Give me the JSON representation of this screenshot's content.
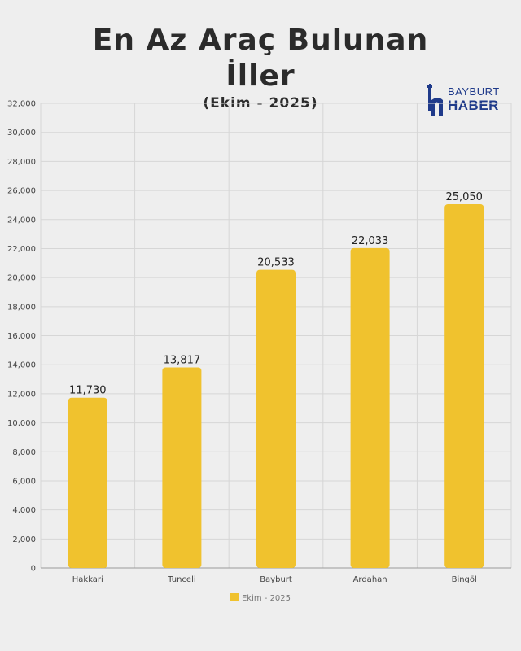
{
  "header": {
    "title_line1": "En Az Araç Bulunan",
    "title_line2": "İller",
    "subtitle": "(Ekim - 2025)"
  },
  "logo": {
    "icon": "bayburt-castle-h-icon",
    "text_top": "BAYBURT",
    "text_bottom": "HABER",
    "color": "#1f3a8a"
  },
  "chart_data": {
    "type": "bar",
    "categories": [
      "Hakkari",
      "Tunceli",
      "Bayburt",
      "Ardahan",
      "Bingöl"
    ],
    "series": [
      {
        "name": "Ekim - 2025",
        "values": [
          11730,
          13817,
          20533,
          22033,
          25050
        ],
        "color": "#f0c22e"
      }
    ],
    "data_labels": [
      "11,730",
      "13,817",
      "20,533",
      "22,033",
      "25,050"
    ],
    "ylim": [
      0,
      32000
    ],
    "yticks": [
      0,
      2000,
      4000,
      6000,
      8000,
      10000,
      12000,
      14000,
      16000,
      18000,
      20000,
      22000,
      24000,
      26000,
      28000,
      30000,
      32000
    ],
    "ytick_labels": [
      "0",
      "2,000",
      "4,000",
      "6,000",
      "8,000",
      "10,000",
      "12,000",
      "14,000",
      "16,000",
      "18,000",
      "20,000",
      "22,000",
      "24,000",
      "26,000",
      "28,000",
      "30,000",
      "32,000"
    ],
    "grid": true,
    "legend_position": "bottom-center"
  }
}
